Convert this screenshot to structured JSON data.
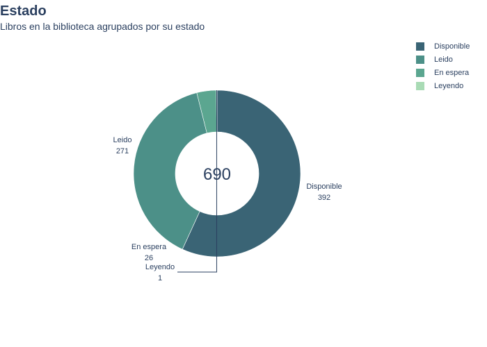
{
  "chart_data": {
    "type": "pie",
    "title": "Estado",
    "subtitle": "Libros en la biblioteca agrupados por su estado",
    "hole": true,
    "center_label": "690",
    "legend_position": "top-right",
    "slices": [
      {
        "name": "Disponible",
        "value": 392,
        "value_label": "392",
        "color": "#3a6475"
      },
      {
        "name": "Leido",
        "value": 271,
        "value_label": "271",
        "color": "#4c9088"
      },
      {
        "name": "En espera",
        "value": 26,
        "value_label": "26",
        "color": "#5ba690"
      },
      {
        "name": "Leyendo",
        "value": 1,
        "value_label": "1",
        "color": "#a9dbb5"
      }
    ]
  }
}
